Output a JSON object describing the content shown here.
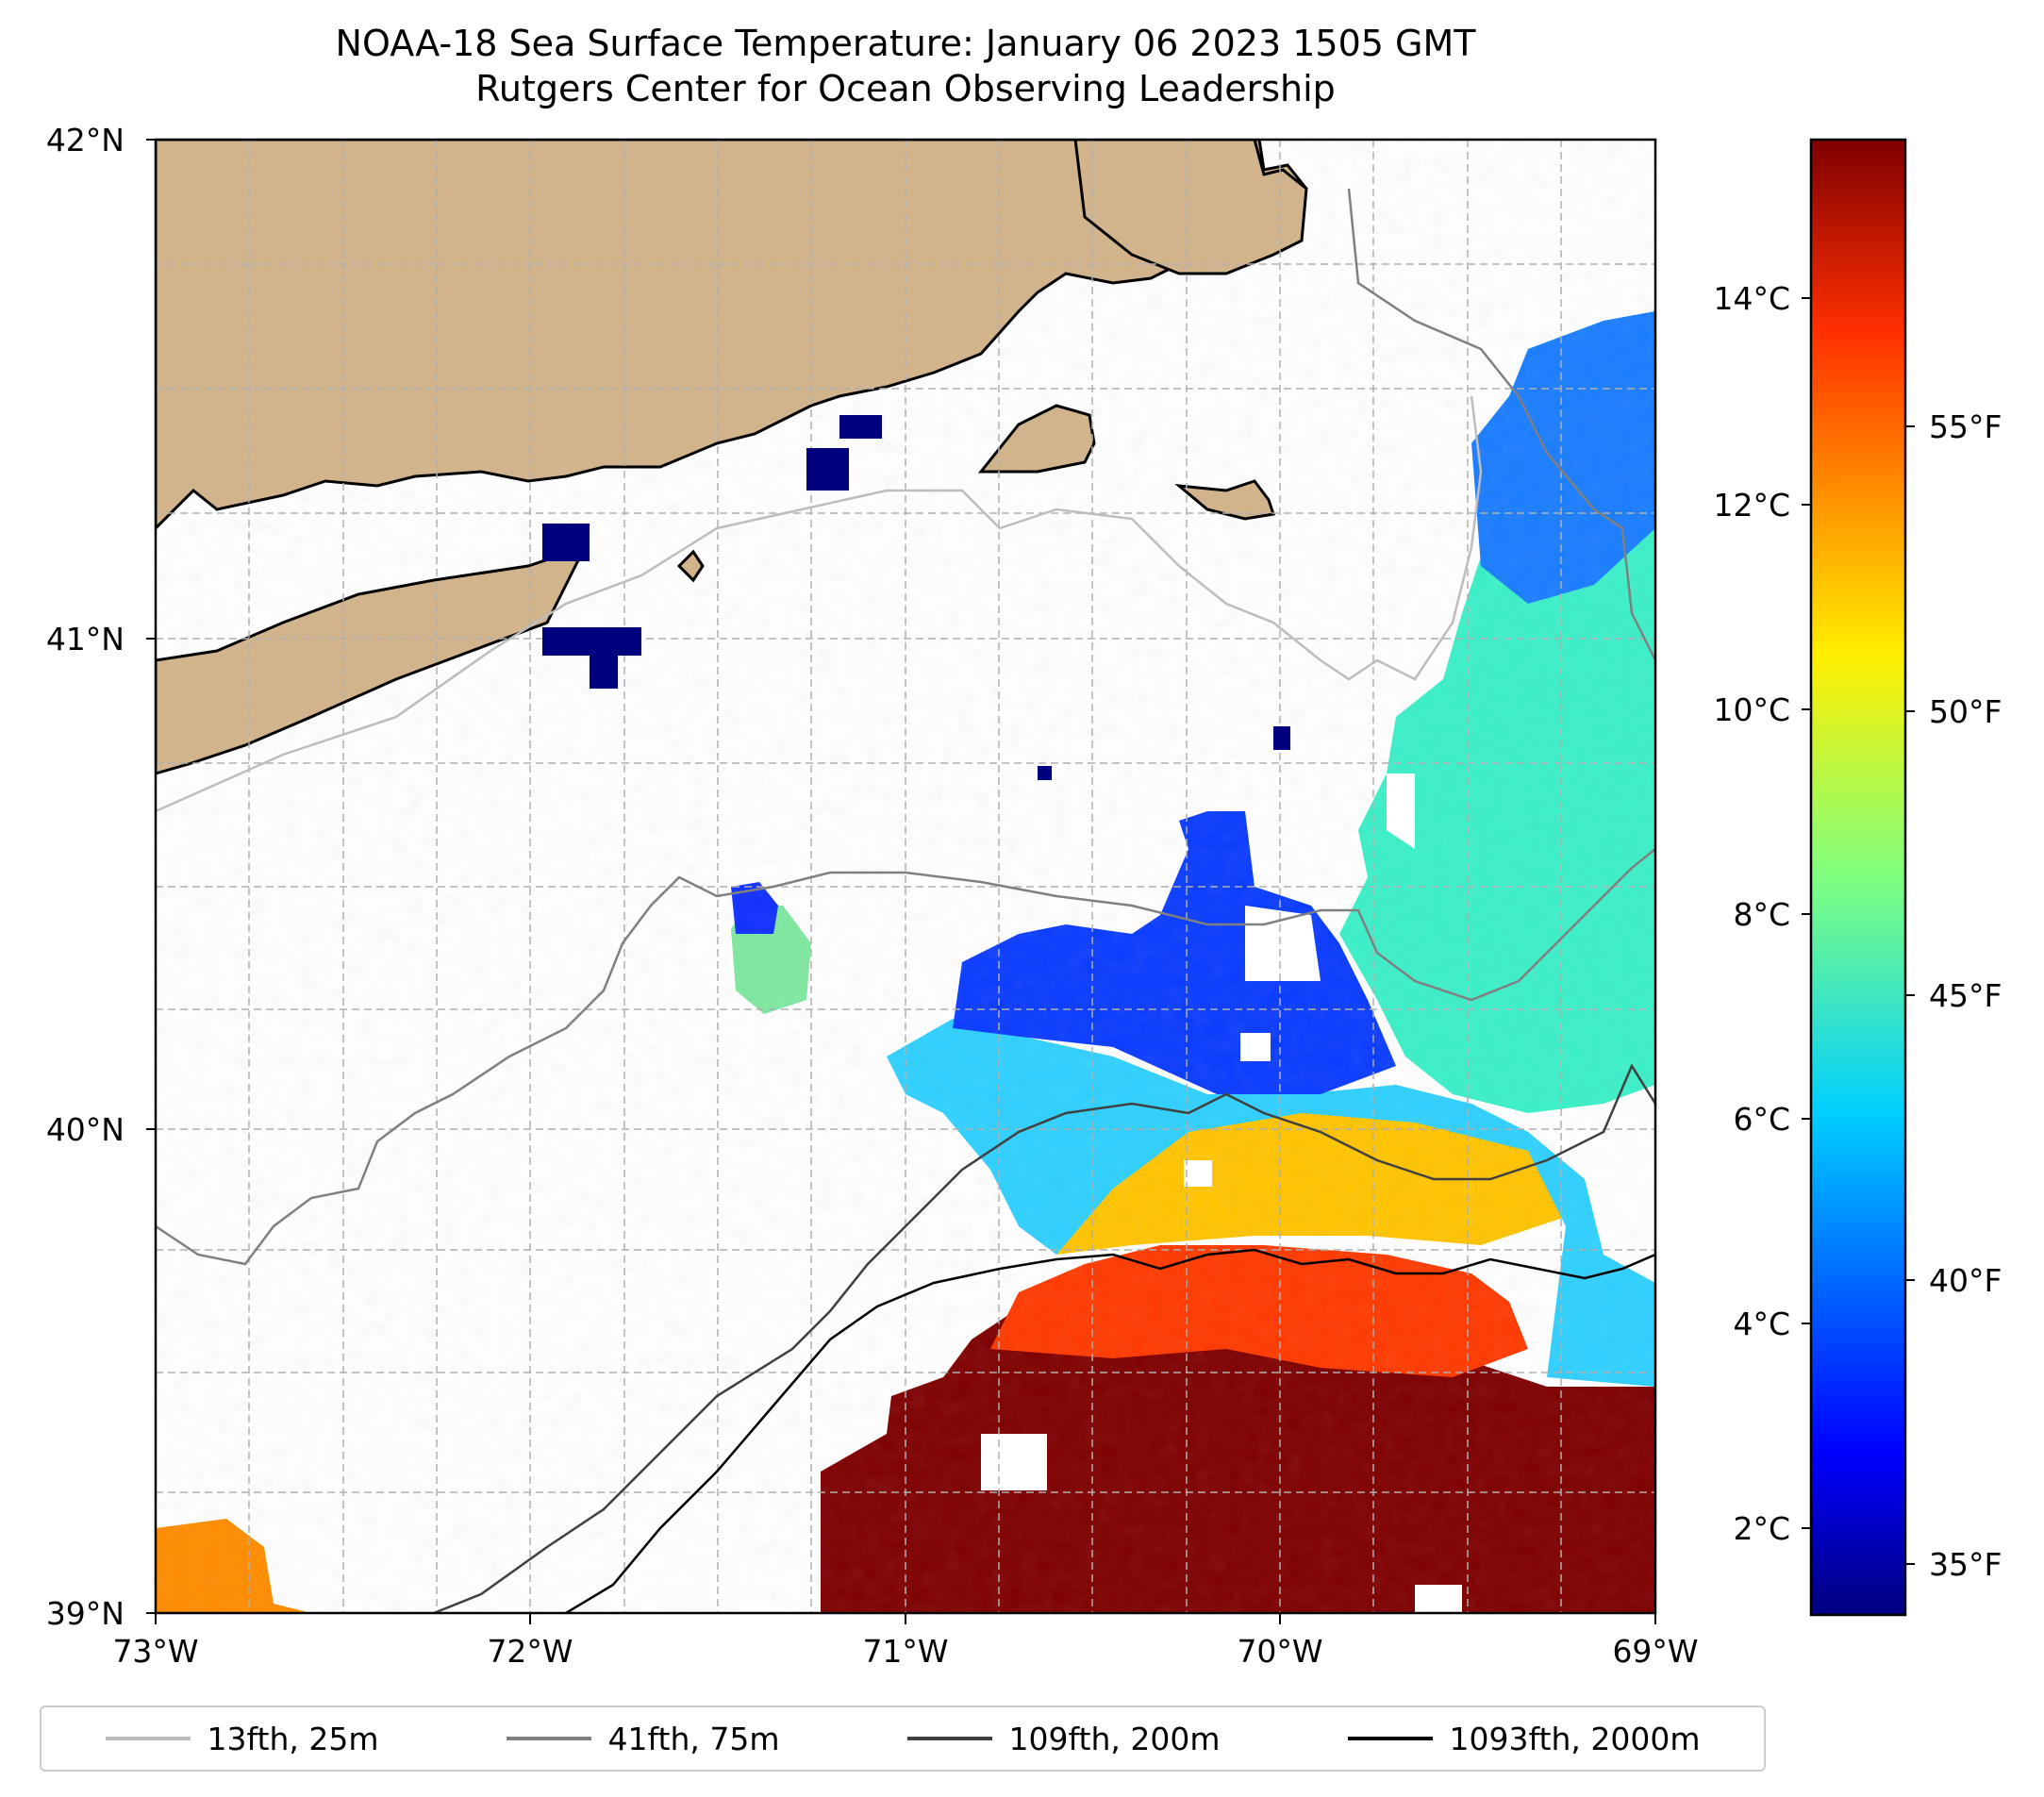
{
  "title": {
    "line1": "NOAA-18 Sea Surface Temperature: January 06 2023 1505 GMT",
    "line2": "Rutgers Center for Ocean Observing Leadership"
  },
  "axes": {
    "lat_ticks": [
      "42°N",
      "41°N",
      "40°N",
      "39°N"
    ],
    "lon_ticks": [
      "73°W",
      "72°W",
      "71°W",
      "70°W",
      "69°W"
    ]
  },
  "colorbar": {
    "celsius_ticks": [
      "14°C",
      "12°C",
      "10°C",
      "8°C",
      "6°C",
      "4°C",
      "2°C"
    ],
    "fahrenheit_ticks": [
      "55°F",
      "50°F",
      "45°F",
      "40°F",
      "35°F"
    ]
  },
  "legend": [
    {
      "label": "13fth, 25m",
      "color": "#bdbdbd"
    },
    {
      "label": "41fth, 75m",
      "color": "#808080"
    },
    {
      "label": "109fth, 200m",
      "color": "#404040"
    },
    {
      "label": "1093fth, 2000m",
      "color": "#000000"
    }
  ],
  "colors": {
    "land": "#d2b48c",
    "grid": "#b0b0b0"
  }
}
